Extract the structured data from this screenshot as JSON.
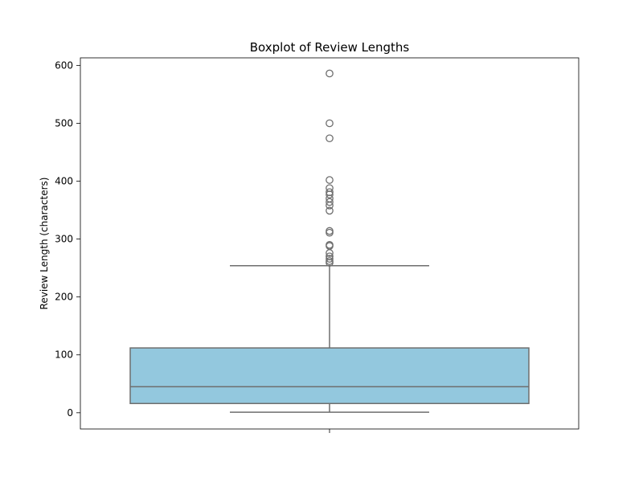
{
  "chart_data": {
    "type": "box",
    "title": "Boxplot of Review Lengths",
    "xlabel": "",
    "ylabel": "Review Length (characters)",
    "ylim": [
      -28,
      613
    ],
    "yticks": [
      0,
      100,
      200,
      300,
      400,
      500,
      600
    ],
    "ytick_labels": [
      "0",
      "100",
      "200",
      "300",
      "400",
      "500",
      "600"
    ],
    "grid": false,
    "legend": "none",
    "box_color": "#93c8de",
    "line_color": "#6e6e6e",
    "boxes": [
      {
        "category": "",
        "whisker_low": 1,
        "q1": 16,
        "median": 45,
        "q3": 112,
        "whisker_high": 254,
        "outliers": [
          586,
          500,
          474,
          402,
          388,
          381,
          377,
          370,
          364,
          358,
          349,
          314,
          311,
          290,
          288,
          276,
          270,
          266,
          262,
          259
        ]
      }
    ]
  }
}
